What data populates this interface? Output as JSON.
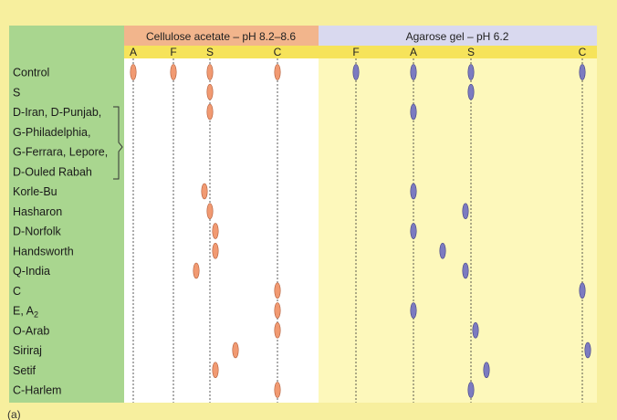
{
  "panels": {
    "cellulose": {
      "title": "Cellulose acetate  –  pH 8.2–8.6",
      "color": "#f2b58c"
    },
    "agarose": {
      "title": "Agarose gel  –  pH 6.2",
      "color": "#d9d9ef"
    }
  },
  "corner_label": "(a)",
  "colors": {
    "frame_bg": "#f7ef9e",
    "label_column": "#a9d68f",
    "subheader_band": "#f6e35a",
    "cellulose_panel": "#ffffff",
    "agarose_panel": "#fdf8bb",
    "orange_band": "#f19a72",
    "blue_band": "#7c7bc0"
  },
  "chart_data": {
    "type": "diagram",
    "lane_markers": {
      "cellulose": [
        "A",
        "F",
        "S",
        "C"
      ],
      "agarose": [
        "F",
        "A",
        "S",
        "C"
      ]
    },
    "rows": [
      {
        "label": "Control",
        "cellulose": [
          "A",
          "F",
          "S",
          "C"
        ],
        "agarose": [
          "F",
          "A",
          "S",
          "C"
        ]
      },
      {
        "label": "S",
        "cellulose": [
          "S"
        ],
        "agarose": [
          "S"
        ]
      },
      {
        "label": "D-Iran, D-Punjab,",
        "cellulose": [
          "S"
        ],
        "agarose": [
          "A"
        ]
      },
      {
        "label": "G-Philadelphia,",
        "cellulose": [],
        "agarose": []
      },
      {
        "label": "G-Ferrara, Lepore,",
        "cellulose": [],
        "agarose": []
      },
      {
        "label": "D-Ouled Rabah",
        "cellulose": [],
        "agarose": []
      },
      {
        "label": "Korle-Bu",
        "cellulose": [
          "S-"
        ],
        "agarose": [
          "A"
        ]
      },
      {
        "label": "Hasharon",
        "cellulose": [
          "S"
        ],
        "agarose": [
          "S-"
        ]
      },
      {
        "label": "D-Norfolk",
        "cellulose": [
          "S+"
        ],
        "agarose": [
          "A"
        ]
      },
      {
        "label": "Handsworth",
        "cellulose": [
          "S+"
        ],
        "agarose": [
          "A-S"
        ]
      },
      {
        "label": "Q-India",
        "cellulose": [
          "F-S"
        ],
        "agarose": [
          "S-"
        ]
      },
      {
        "label": "C",
        "cellulose": [
          "C"
        ],
        "agarose": [
          "C"
        ]
      },
      {
        "label": "E, A2",
        "cellulose": [
          "C"
        ],
        "agarose": [
          "A"
        ]
      },
      {
        "label": "O-Arab",
        "cellulose": [
          "C"
        ],
        "agarose": [
          "S+"
        ]
      },
      {
        "label": "Siriraj",
        "cellulose": [
          "S-C"
        ],
        "agarose": [
          "C+"
        ]
      },
      {
        "label": "Setif",
        "cellulose": [
          "S+"
        ],
        "agarose": [
          "S-C"
        ]
      },
      {
        "label": "C-Harlem",
        "cellulose": [
          "C"
        ],
        "agarose": [
          "S"
        ]
      }
    ],
    "bracket_group": [
      "D-Iran, D-Punjab,",
      "G-Philadelphia,",
      "G-Ferrara, Lepore,",
      "D-Ouled Rabah"
    ]
  }
}
